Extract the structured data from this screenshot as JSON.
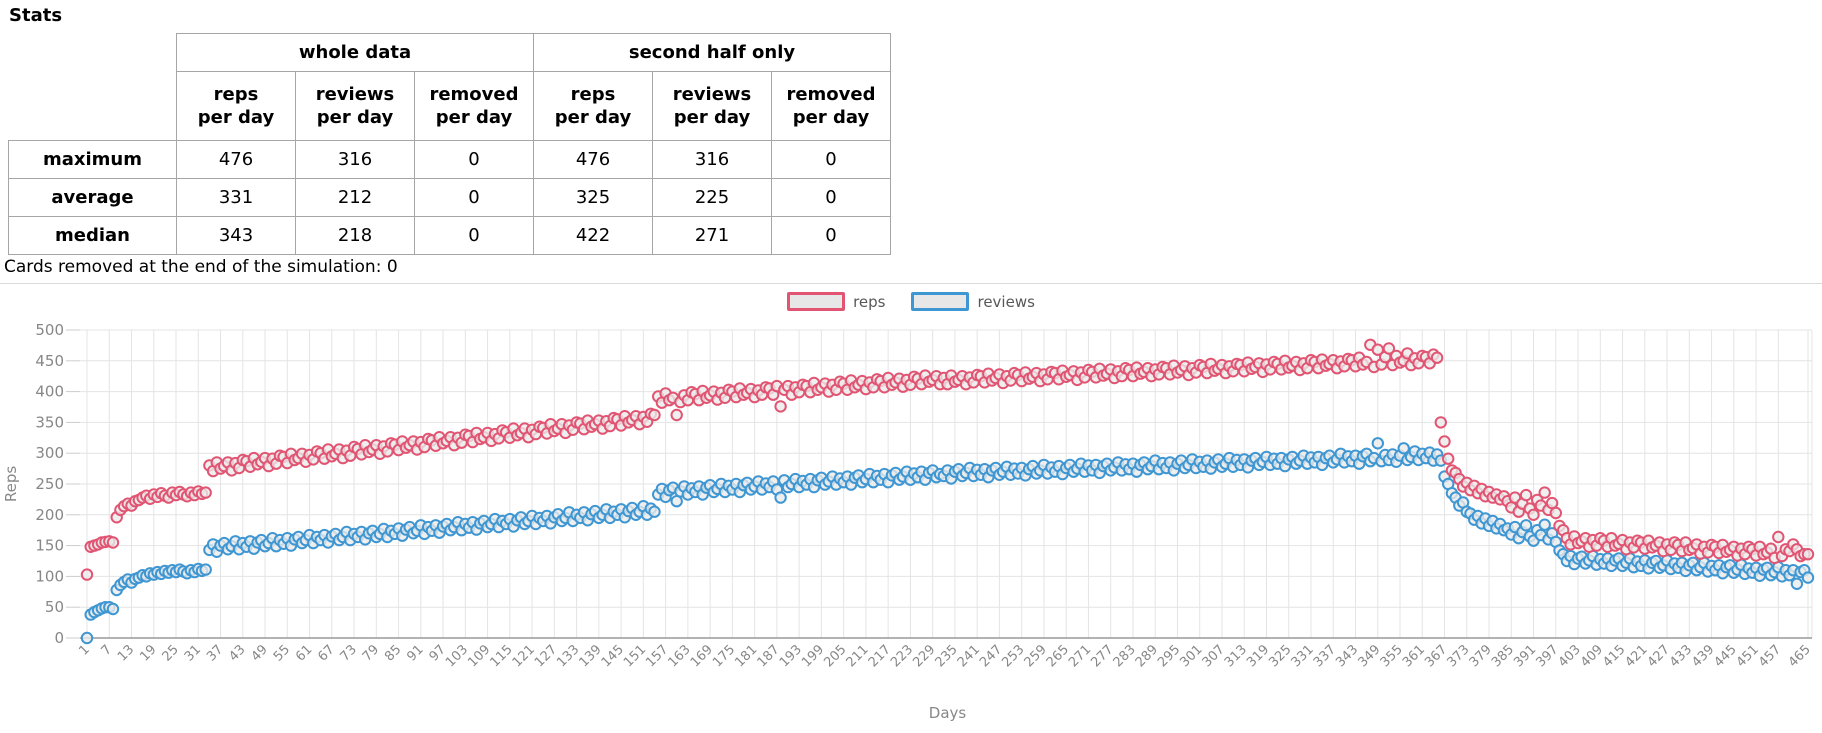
{
  "page_title": "Stats",
  "stats_table": {
    "group_headers": [
      "whole data",
      "second half only"
    ],
    "column_headers": [
      "reps\nper day",
      "reviews\nper day",
      "removed\nper day",
      "reps\nper day",
      "reviews\nper day",
      "removed\nper day"
    ],
    "rows": [
      {
        "label": "maximum",
        "values": [
          "476",
          "316",
          "0",
          "476",
          "316",
          "0"
        ]
      },
      {
        "label": "average",
        "values": [
          "331",
          "212",
          "0",
          "325",
          "225",
          "0"
        ]
      },
      {
        "label": "median",
        "values": [
          "343",
          "218",
          "0",
          "422",
          "271",
          "0"
        ]
      }
    ]
  },
  "cards_removed_note": "Cards removed at the end of the simulation: 0",
  "legend": {
    "items": [
      {
        "label": "reps",
        "color": "#e15573"
      },
      {
        "label": "reviews",
        "color": "#3e96d2"
      }
    ]
  },
  "chart_data": {
    "type": "scatter",
    "title": "",
    "xlabel": "Days",
    "ylabel": "Reps",
    "x_start": 1,
    "x_step": 1,
    "x_end": 465,
    "ylim": [
      0,
      500
    ],
    "grid": true,
    "legend_position": "top-center",
    "y_ticks": [
      0,
      50,
      100,
      150,
      200,
      250,
      300,
      350,
      400,
      450,
      500
    ],
    "x_tick_labels": [
      1,
      7,
      13,
      19,
      25,
      31,
      37,
      43,
      49,
      55,
      61,
      67,
      73,
      79,
      85,
      91,
      97,
      103,
      109,
      115,
      121,
      127,
      133,
      139,
      145,
      151,
      157,
      163,
      169,
      175,
      181,
      187,
      193,
      199,
      205,
      211,
      217,
      223,
      229,
      235,
      241,
      247,
      253,
      259,
      265,
      271,
      277,
      283,
      289,
      295,
      301,
      307,
      313,
      319,
      325,
      331,
      337,
      343,
      349,
      355,
      361,
      367,
      373,
      379,
      385,
      391,
      397,
      403,
      409,
      415,
      421,
      427,
      433,
      439,
      445,
      451,
      457,
      465
    ],
    "series": [
      {
        "name": "reps",
        "color": "#e15573",
        "point_fill": "#ebebeb",
        "values": [
          103,
          148,
          150,
          152,
          155,
          156,
          157,
          155,
          196,
          208,
          214,
          218,
          215,
          222,
          224,
          228,
          231,
          226,
          233,
          229,
          235,
          231,
          228,
          236,
          232,
          237,
          233,
          230,
          236,
          232,
          238,
          234,
          236,
          280,
          271,
          285,
          275,
          279,
          285,
          272,
          284,
          276,
          289,
          287,
          278,
          292,
          282,
          286,
          292,
          279,
          291,
          283,
          296,
          294,
          284,
          299,
          289,
          292,
          299,
          286,
          297,
          290,
          303,
          300,
          291,
          306,
          295,
          299,
          306,
          292,
          304,
          296,
          310,
          307,
          298,
          313,
          302,
          306,
          313,
          299,
          311,
          303,
          316,
          314,
          305,
          319,
          309,
          313,
          319,
          306,
          318,
          310,
          323,
          321,
          312,
          326,
          316,
          320,
          326,
          313,
          325,
          317,
          330,
          328,
          318,
          333,
          323,
          326,
          333,
          320,
          331,
          324,
          337,
          334,
          325,
          340,
          329,
          333,
          340,
          326,
          338,
          331,
          343,
          341,
          332,
          347,
          336,
          340,
          347,
          333,
          345,
          338,
          350,
          348,
          339,
          353,
          343,
          347,
          353,
          340,
          352,
          344,
          357,
          355,
          345,
          360,
          350,
          354,
          360,
          347,
          359,
          351,
          364,
          362,
          392,
          382,
          397,
          386,
          390,
          362,
          383,
          394,
          386,
          399,
          396,
          386,
          401,
          390,
          394,
          400,
          387,
          398,
          390,
          403,
          400,
          391,
          405,
          395,
          398,
          404,
          391,
          402,
          395,
          407,
          405,
          395,
          409,
          376,
          403,
          409,
          395,
          407,
          399,
          411,
          409,
          399,
          414,
          403,
          407,
          413,
          400,
          411,
          403,
          416,
          413,
          403,
          418,
          407,
          411,
          417,
          404,
          415,
          407,
          420,
          417,
          407,
          422,
          411,
          415,
          421,
          408,
          419,
          411,
          424,
          421,
          412,
          426,
          416,
          419,
          425,
          412,
          422,
          412,
          426,
          416,
          419,
          425,
          412,
          423,
          415,
          427,
          425,
          415,
          429,
          418,
          422,
          428,
          414,
          425,
          418,
          430,
          427,
          417,
          431,
          421,
          424,
          430,
          417,
          428,
          420,
          432,
          430,
          420,
          434,
          424,
          427,
          433,
          419,
          431,
          423,
          435,
          432,
          423,
          437,
          426,
          429,
          436,
          422,
          433,
          425,
          438,
          435,
          425,
          439,
          429,
          432,
          438,
          425,
          436,
          428,
          440,
          438,
          428,
          442,
          431,
          435,
          441,
          427,
          438,
          431,
          443,
          440,
          430,
          445,
          434,
          437,
          443,
          430,
          441,
          433,
          445,
          443,
          433,
          447,
          437,
          440,
          446,
          432,
          444,
          436,
          448,
          445,
          436,
          450,
          439,
          442,
          448,
          435,
          446,
          438,
          451,
          448,
          438,
          452,
          442,
          445,
          451,
          438,
          449,
          441,
          453,
          451,
          441,
          455,
          444,
          448,
          476,
          440,
          468,
          444,
          456,
          470,
          443,
          458,
          447,
          450,
          462,
          443,
          454,
          446,
          458,
          456,
          446,
          460,
          455,
          350,
          319,
          291,
          272,
          268,
          258,
          246,
          252,
          240,
          247,
          235,
          242,
          230,
          237,
          228,
          233,
          225,
          230,
          222,
          212,
          228,
          205,
          218,
          232,
          210,
          200,
          224,
          215,
          236,
          208,
          219,
          203,
          182,
          175,
          162,
          152,
          165,
          154,
          157,
          162,
          148,
          159,
          150,
          162,
          158,
          148,
          162,
          150,
          153,
          159,
          144,
          155,
          147,
          158,
          155,
          145,
          158,
          147,
          150,
          155,
          141,
          152,
          143,
          155,
          151,
          141,
          155,
          143,
          146,
          152,
          137,
          148,
          139,
          151,
          148,
          138,
          151,
          140,
          143,
          148,
          134,
          145,
          136,
          148,
          144,
          134,
          148,
          136,
          139,
          145,
          130,
          164,
          133,
          144,
          141,
          152,
          144,
          133,
          136,
          136
        ]
      },
      {
        "name": "reviews",
        "color": "#3e96d2",
        "point_fill": "#ebebeb",
        "values": [
          0,
          38,
          42,
          45,
          48,
          50,
          50,
          47,
          78,
          86,
          91,
          95,
          90,
          96,
          98,
          102,
          100,
          105,
          103,
          107,
          104,
          109,
          106,
          110,
          107,
          111,
          108,
          105,
          110,
          107,
          112,
          109,
          111,
          143,
          152,
          140,
          150,
          154,
          144,
          149,
          157,
          144,
          154,
          148,
          157,
          145,
          155,
          159,
          149,
          154,
          162,
          149,
          159,
          153,
          162,
          150,
          160,
          164,
          154,
          159,
          167,
          154,
          164,
          159,
          167,
          155,
          165,
          169,
          159,
          164,
          172,
          159,
          169,
          164,
          172,
          160,
          170,
          174,
          164,
          169,
          177,
          164,
          174,
          169,
          178,
          166,
          176,
          180,
          170,
          174,
          183,
          169,
          180,
          174,
          183,
          171,
          181,
          185,
          175,
          180,
          188,
          175,
          185,
          179,
          188,
          176,
          186,
          190,
          180,
          185,
          193,
          180,
          190,
          185,
          193,
          181,
          191,
          196,
          185,
          190,
          198,
          185,
          195,
          190,
          198,
          186,
          196,
          201,
          190,
          195,
          204,
          190,
          200,
          195,
          204,
          191,
          201,
          206,
          195,
          200,
          209,
          195,
          205,
          200,
          209,
          196,
          206,
          211,
          200,
          205,
          214,
          200,
          210,
          205,
          233,
          242,
          229,
          240,
          244,
          222,
          238,
          246,
          233,
          243,
          237,
          246,
          233,
          244,
          248,
          237,
          242,
          250,
          237,
          247,
          241,
          250,
          237,
          248,
          252,
          241,
          246,
          254,
          241,
          251,
          245,
          254,
          241,
          228,
          256,
          245,
          250,
          258,
          245,
          255,
          249,
          258,
          245,
          256,
          260,
          249,
          254,
          262,
          249,
          259,
          253,
          262,
          249,
          260,
          264,
          253,
          258,
          266,
          253,
          263,
          257,
          266,
          253,
          264,
          268,
          257,
          262,
          270,
          257,
          267,
          261,
          270,
          257,
          268,
          272,
          261,
          266,
          263,
          272,
          259,
          270,
          274,
          263,
          268,
          276,
          263,
          273,
          265,
          274,
          261,
          272,
          276,
          265,
          270,
          278,
          265,
          275,
          267,
          276,
          264,
          274,
          279,
          267,
          272,
          281,
          267,
          277,
          270,
          279,
          266,
          276,
          281,
          270,
          275,
          283,
          270,
          280,
          272,
          281,
          268,
          279,
          283,
          272,
          277,
          285,
          272,
          282,
          274,
          283,
          270,
          281,
          285,
          274,
          279,
          288,
          274,
          284,
          276,
          285,
          272,
          283,
          288,
          276,
          281,
          290,
          276,
          286,
          278,
          288,
          275,
          285,
          290,
          278,
          283,
          292,
          278,
          289,
          281,
          290,
          277,
          288,
          292,
          281,
          286,
          294,
          281,
          291,
          283,
          292,
          279,
          290,
          294,
          283,
          288,
          296,
          283,
          293,
          285,
          294,
          281,
          292,
          296,
          285,
          290,
          299,
          285,
          295,
          287,
          296,
          283,
          295,
          299,
          287,
          292,
          316,
          287,
          297,
          289,
          298,
          286,
          296,
          308,
          289,
          294,
          303,
          289,
          299,
          292,
          301,
          288,
          298,
          288,
          262,
          250,
          235,
          228,
          215,
          220,
          205,
          202,
          192,
          198,
          186,
          194,
          182,
          190,
          178,
          185,
          175,
          178,
          168,
          180,
          162,
          172,
          183,
          165,
          158,
          175,
          167,
          184,
          160,
          170,
          156,
          142,
          136,
          125,
          133,
          120,
          129,
          132,
          121,
          126,
          133,
          119,
          128,
          121,
          129,
          117,
          126,
          129,
          117,
          122,
          129,
          115,
          124,
          117,
          126,
          113,
          122,
          125,
          114,
          118,
          126,
          112,
          121,
          114,
          122,
          109,
          118,
          122,
          110,
          115,
          122,
          108,
          117,
          110,
          118,
          105,
          115,
          118,
          106,
          111,
          119,
          104,
          113,
          106,
          114,
          101,
          111,
          114,
          102,
          107,
          115,
          100,
          110,
          102,
          110,
          88,
          107,
          110,
          98
        ]
      }
    ]
  }
}
